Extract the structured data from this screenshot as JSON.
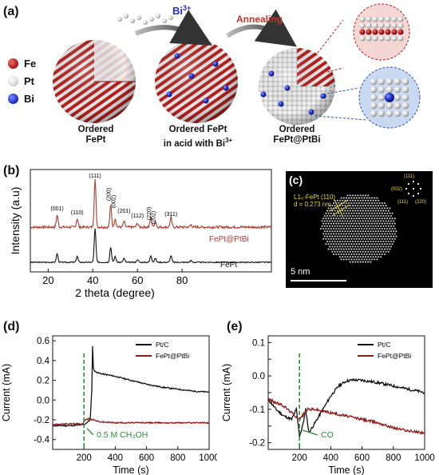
{
  "panel_a": {
    "label": "(a)",
    "legend": [
      {
        "symbol": "Fe",
        "color": "#b4201e"
      },
      {
        "symbol": "Pt",
        "color": "#e6e6e6"
      },
      {
        "symbol": "Bi",
        "color": "#2233cc"
      }
    ],
    "ion": "Bi3+",
    "ion_text": "Bi",
    "ion_charge": "3+",
    "step_label": "Annealing",
    "captions": [
      {
        "line1": "Ordered",
        "line2": "FePt",
        "line2_sup": ""
      },
      {
        "line1": "Ordered FePt",
        "line2": "in acid with Bi",
        "line2_sup": "3+"
      },
      {
        "line1": "Ordered",
        "line2": "FePt@PtBi",
        "line2_sup": ""
      }
    ]
  },
  "panel_b": {
    "label": "(b)",
    "chart_data": {
      "type": "line",
      "xlabel": "2 theta (degree)",
      "ylabel": "Intensity (a.u)",
      "xlim": [
        12,
        120
      ],
      "xticks": [
        20,
        40,
        60,
        80
      ],
      "series": [
        {
          "name": "FePt@PtBi",
          "color": "#b03a2e"
        },
        {
          "name": "FePt",
          "color": "#111111"
        }
      ],
      "peak_labels": [
        "(001)",
        "(110)",
        "(111)",
        "(200)",
        "(002)",
        "(201)",
        "(112)",
        "(220)",
        "(202)",
        "(311)"
      ],
      "peak_positions": [
        24,
        33,
        41,
        48,
        50,
        54,
        60,
        66,
        68,
        75
      ]
    }
  },
  "panel_c": {
    "label": "(c)",
    "annotation_line1": "L1₀-FePt (110)",
    "annotation_line2": "d = 0.273 nm",
    "scale_bar": "5 nm",
    "fft_labels": [
      "(111)",
      "(002)",
      "(111)",
      "(220)"
    ]
  },
  "panel_d": {
    "label": "(d)",
    "chart_data": {
      "type": "line",
      "xlabel": "Time (s)",
      "ylabel": "Current (mA)",
      "xlim": [
        0,
        1000
      ],
      "ylim": [
        -0.5,
        0.65
      ],
      "xticks": [
        200,
        400,
        600,
        800,
        1000
      ],
      "yticks": [
        -0.4,
        -0.2,
        0.0,
        0.2,
        0.4,
        0.6
      ],
      "ytick_labels": [
        "-0.4",
        "-0.2",
        "0.0",
        "0.2",
        "0.4",
        "0.6"
      ],
      "injection_time": 200,
      "annotation": "0.5 M CH₃OH",
      "series": [
        {
          "name": "Pt/C",
          "color": "#111111",
          "x": [
            0,
            100,
            200,
            225,
            240,
            250,
            255,
            260,
            270,
            300,
            400,
            500,
            600,
            700,
            800,
            900,
            1000
          ],
          "y": [
            -0.26,
            -0.26,
            -0.25,
            -0.22,
            -0.2,
            0.1,
            0.55,
            0.32,
            0.29,
            0.27,
            0.24,
            0.2,
            0.16,
            0.13,
            0.11,
            0.09,
            0.08
          ]
        },
        {
          "name": "FePt@PtBi",
          "color": "#8b1a1a",
          "x": [
            0,
            100,
            190,
            210,
            230,
            260,
            300,
            400,
            500,
            600,
            700,
            800,
            900,
            1000
          ],
          "y": [
            -0.25,
            -0.24,
            -0.24,
            -0.2,
            -0.19,
            -0.2,
            -0.22,
            -0.23,
            -0.23,
            -0.23,
            -0.23,
            -0.23,
            -0.23,
            -0.23
          ]
        }
      ]
    }
  },
  "panel_e": {
    "label": "(e)",
    "chart_data": {
      "type": "line",
      "xlabel": "Time (s)",
      "ylabel": "Current (mA)",
      "xlim": [
        0,
        1000
      ],
      "ylim": [
        -0.22,
        0.12
      ],
      "xticks": [
        200,
        400,
        600,
        800,
        1000
      ],
      "yticks": [
        -0.2,
        -0.15,
        -0.1,
        -0.05,
        0.0,
        0.05,
        0.1
      ],
      "ytick_labels": [
        "-0.2",
        "",
        "-0.1",
        "",
        "0.0",
        "",
        "0.1"
      ],
      "injection_time": 200,
      "annotation": "CO",
      "series": [
        {
          "name": "Pt/C",
          "color": "#111111",
          "x": [
            0,
            50,
            100,
            150,
            180,
            200,
            220,
            240,
            260,
            300,
            350,
            400,
            450,
            500,
            550,
            600,
            700,
            800,
            900,
            1000
          ],
          "y": [
            -0.07,
            -0.1,
            -0.12,
            -0.13,
            -0.1,
            -0.18,
            -0.15,
            -0.1,
            -0.17,
            -0.14,
            -0.1,
            -0.06,
            -0.03,
            -0.015,
            -0.012,
            -0.013,
            -0.02,
            -0.03,
            -0.04,
            -0.05
          ]
        },
        {
          "name": "FePt@PtBi",
          "color": "#8b1a1a",
          "x": [
            0,
            50,
            100,
            150,
            200,
            250,
            300,
            400,
            500,
            600,
            700,
            800,
            900,
            1000
          ],
          "y": [
            -0.07,
            -0.08,
            -0.09,
            -0.11,
            -0.13,
            -0.1,
            -0.1,
            -0.11,
            -0.12,
            -0.13,
            -0.14,
            -0.155,
            -0.165,
            -0.17
          ]
        }
      ]
    }
  }
}
